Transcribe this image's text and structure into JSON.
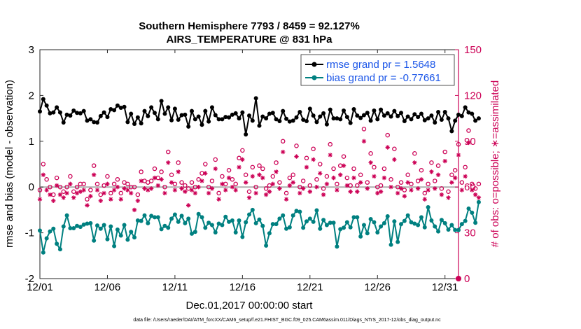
{
  "chart_data": {
    "type": "line",
    "title_line1": "Southern Hemisphere 7793 / 8459 = 92.127%",
    "title_line2": "AIRS_TEMPERATURE @ 831 hPa",
    "xlabel": "Dec.01,2017 00:00:00 start",
    "ylabel_left": "rmse and bias (model - observation)",
    "ylabel_right": "# of obs: o=possible; ∗=assimilated",
    "footnote": "data file: /Users/raeder/DAI/ATM_forcXX/CAM6_setup/f.e21.FHIST_BGC.f09_025.CAM6assim.011/Diags_NTrS_2017-12/obs_diag_output.nc",
    "x_tick_labels": [
      "12/01",
      "12/06",
      "12/11",
      "12/16",
      "12/21",
      "12/26",
      "12/31"
    ],
    "x_tick_days": [
      0,
      5,
      10,
      15,
      20,
      25,
      30
    ],
    "xlim_days": [
      0,
      31
    ],
    "ylim_left": [
      -2,
      3
    ],
    "y_ticks_left": [
      "-2",
      "-1",
      "0",
      "1",
      "2",
      "3"
    ],
    "ylim_right": [
      0,
      150
    ],
    "y_ticks_right": [
      "0",
      "30",
      "60",
      "90",
      "120",
      "150"
    ],
    "legend": {
      "position": "top-right",
      "rmse_label": "rmse grand pr = 1.5648",
      "bias_label": "bias grand pr = -0.77661"
    },
    "colors": {
      "rmse": "#000000",
      "bias": "#008080",
      "obs": "#cc0055",
      "legend_text": "#1a55e8",
      "zero_line": "#b0b0b0"
    },
    "step_days": 0.25,
    "series": [
      {
        "name": "rmse",
        "values": [
          1.65,
          1.92,
          1.78,
          1.61,
          1.63,
          1.74,
          1.63,
          1.41,
          1.58,
          1.56,
          1.67,
          1.62,
          1.61,
          1.66,
          1.45,
          1.48,
          1.42,
          1.41,
          1.55,
          1.63,
          1.53,
          1.7,
          1.68,
          1.78,
          1.73,
          1.75,
          1.42,
          1.6,
          1.38,
          1.52,
          1.39,
          1.66,
          1.55,
          1.74,
          1.62,
          1.48,
          1.88,
          1.6,
          1.74,
          1.46,
          1.71,
          1.47,
          1.57,
          1.58,
          1.32,
          1.66,
          1.48,
          1.54,
          1.36,
          1.66,
          1.43,
          1.74,
          1.57,
          1.48,
          1.48,
          1.53,
          1.52,
          1.58,
          1.61,
          1.5,
          1.63,
          1.15,
          1.56,
          1.45,
          1.94,
          1.34,
          1.54,
          1.5,
          1.6,
          1.62,
          1.48,
          1.44,
          1.66,
          1.49,
          1.43,
          1.45,
          1.52,
          1.64,
          1.47,
          1.44,
          1.71,
          1.56,
          1.42,
          1.54,
          1.61,
          1.37,
          1.69,
          1.5,
          1.5,
          1.48,
          1.67,
          1.53,
          1.4,
          1.7,
          1.56,
          1.51,
          1.57,
          1.62,
          1.45,
          1.67,
          1.48,
          1.69,
          1.56,
          1.61,
          1.54,
          1.66,
          1.55,
          1.62,
          1.44,
          1.54,
          1.48,
          1.59,
          1.53,
          1.6,
          1.46,
          1.5,
          1.56,
          1.41,
          1.64,
          1.47,
          1.64,
          1.5,
          1.22,
          1.45,
          1.58,
          1.55,
          1.74,
          1.63,
          1.6,
          1.45,
          1.5
        ]
      },
      {
        "name": "bias",
        "values": [
          -0.95,
          -1.43,
          -1.12,
          -0.97,
          -0.91,
          -1.24,
          -1.36,
          -0.86,
          -0.62,
          -0.9,
          -0.9,
          -0.85,
          -0.87,
          -0.82,
          -0.8,
          -0.79,
          -1.17,
          -0.84,
          -0.91,
          -0.83,
          -1.14,
          -0.86,
          -1.29,
          -0.93,
          -1.06,
          -0.83,
          -1.15,
          -0.98,
          -1.1,
          -0.73,
          -0.74,
          -0.62,
          -0.79,
          -0.63,
          -0.66,
          -0.66,
          -0.92,
          -0.85,
          -0.89,
          -0.69,
          -0.6,
          -0.76,
          -0.63,
          -0.79,
          -0.69,
          -1.02,
          -0.98,
          -0.59,
          -0.66,
          -0.89,
          -0.78,
          -0.83,
          -0.99,
          -0.8,
          -0.83,
          -0.65,
          -0.76,
          -0.73,
          -0.99,
          -0.73,
          -1.09,
          -0.77,
          -0.6,
          -0.5,
          -0.79,
          -0.71,
          -0.85,
          -1.28,
          -1.01,
          -0.81,
          -0.81,
          -0.69,
          -0.62,
          -0.91,
          -0.88,
          -0.62,
          -0.52,
          -0.54,
          -0.89,
          -0.75,
          -0.69,
          -0.76,
          -0.51,
          -0.91,
          -0.72,
          -0.83,
          -0.78,
          -0.78,
          -1.3,
          -0.92,
          -0.89,
          -0.77,
          -0.88,
          -0.66,
          -0.66,
          -1.08,
          -0.83,
          -1.01,
          -0.7,
          -0.77,
          -0.99,
          -0.86,
          -0.79,
          -0.64,
          -1.26,
          -0.75,
          -1.2,
          -0.81,
          -0.74,
          -0.62,
          -0.77,
          -0.8,
          -0.83,
          -0.66,
          -0.88,
          -0.44,
          -0.73,
          -0.86,
          -0.97,
          -0.72,
          -0.79,
          -0.93,
          -0.83,
          -0.94,
          -0.94,
          -0.81,
          -0.74,
          -0.47,
          -0.56,
          -0.78,
          -0.33
        ]
      },
      {
        "name": "obs_possible",
        "values": [
          58,
          75,
          65,
          60,
          55,
          66,
          60,
          57,
          60,
          67,
          57,
          60,
          62,
          62,
          52,
          58,
          74,
          62,
          55,
          61,
          67,
          56,
          62,
          65,
          56,
          63,
          62,
          60,
          60,
          55,
          70,
          64,
          63,
          64,
          72,
          66,
          70,
          60,
          83,
          68,
          62,
          76,
          63,
          61,
          59,
          63,
          60,
          65,
          69,
          75,
          60,
          64,
          78,
          56,
          67,
          62,
          71,
          65,
          62,
          79,
          84,
          68,
          57,
          73,
          60,
          74,
          72,
          59,
          61,
          67,
          76,
          63,
          90,
          56,
          66,
          68,
          87,
          60,
          64,
          79,
          61,
          85,
          65,
          75,
          59,
          67,
          88,
          72,
          62,
          74,
          80,
          66,
          61,
          72,
          61,
          68,
          98,
          63,
          82,
          73,
          60,
          61,
          72,
          94,
          65,
          85,
          60,
          63,
          58,
          68,
          62,
          82,
          64,
          71,
          56,
          62,
          76,
          64,
          74,
          59,
          83,
          57,
          68,
          71,
          88,
          63,
          73,
          97,
          62,
          59,
          62
        ]
      },
      {
        "name": "obs_assimilated",
        "values": [
          52,
          68,
          58,
          55,
          51,
          61,
          55,
          53,
          56,
          62,
          53,
          56,
          57,
          58,
          48,
          54,
          68,
          58,
          51,
          56,
          62,
          52,
          58,
          60,
          52,
          59,
          58,
          56,
          45,
          51,
          64,
          59,
          58,
          59,
          66,
          61,
          65,
          56,
          76,
          63,
          58,
          70,
          59,
          57,
          48,
          58,
          56,
          60,
          64,
          69,
          56,
          59,
          72,
          52,
          62,
          58,
          66,
          60,
          58,
          73,
          78,
          63,
          53,
          67,
          56,
          68,
          66,
          55,
          57,
          62,
          70,
          59,
          83,
          52,
          61,
          63,
          80,
          56,
          59,
          73,
          57,
          78,
          60,
          69,
          55,
          62,
          81,
          66,
          58,
          68,
          74,
          61,
          57,
          66,
          57,
          63,
          90,
          59,
          76,
          67,
          56,
          57,
          66,
          86,
          60,
          78,
          56,
          59,
          54,
          63,
          58,
          76,
          59,
          65,
          52,
          58,
          70,
          59,
          68,
          55,
          77,
          53,
          63,
          66,
          81,
          58,
          67,
          89,
          58,
          55,
          53
        ]
      }
    ]
  }
}
